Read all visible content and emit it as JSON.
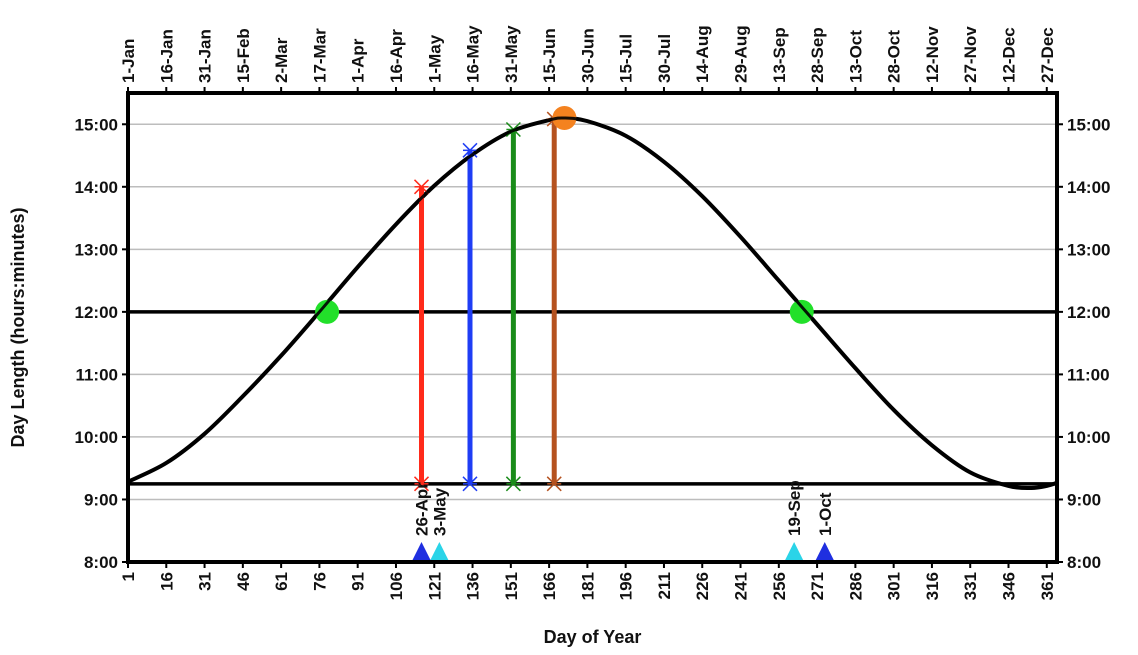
{
  "chart_data": {
    "type": "line",
    "title": "",
    "xlabel": "Day of Year",
    "ylabel": "Day Length (hours:minutes)",
    "xlim": [
      1,
      365
    ],
    "ylim": [
      "8:00",
      "15:30"
    ],
    "grid": true,
    "x_ticks_bottom": [
      "1",
      "16",
      "31",
      "46",
      "61",
      "76",
      "91",
      "106",
      "121",
      "136",
      "151",
      "166",
      "181",
      "196",
      "211",
      "226",
      "241",
      "256",
      "271",
      "286",
      "301",
      "316",
      "331",
      "346",
      "361"
    ],
    "x_ticks_top": [
      "1-Jan",
      "16-Jan",
      "31-Jan",
      "15-Feb",
      "2-Mar",
      "17-Mar",
      "1-Apr",
      "16-Apr",
      "1-May",
      "16-May",
      "31-May",
      "15-Jun",
      "30-Jun",
      "15-Jul",
      "30-Jul",
      "14-Aug",
      "29-Aug",
      "13-Sep",
      "28-Sep",
      "13-Oct",
      "28-Oct",
      "12-Nov",
      "27-Nov",
      "12-Dec",
      "27-Dec"
    ],
    "y_ticks": [
      "8:00",
      "9:00",
      "10:00",
      "11:00",
      "12:00",
      "13:00",
      "14:00",
      "15:00"
    ],
    "y_ticks_right": [
      "8:00",
      "9:00",
      "10:00",
      "11:00",
      "12:00",
      "13:00",
      "14:00",
      "15:00"
    ],
    "day_length_curve": {
      "x": [
        1,
        16,
        31,
        46,
        61,
        76,
        91,
        106,
        121,
        136,
        151,
        166,
        172,
        181,
        196,
        211,
        226,
        241,
        256,
        271,
        286,
        301,
        316,
        331,
        346,
        355,
        361,
        365
      ],
      "y": [
        "9:17",
        "9:35",
        "10:03",
        "10:39",
        "11:18",
        "12:00",
        "12:43",
        "13:24",
        "14:01",
        "14:31",
        "14:53",
        "15:04",
        "15:06",
        "15:03",
        "14:49",
        "14:24",
        "13:51",
        "13:12",
        "12:30",
        "11:48",
        "11:06",
        "10:26",
        "9:52",
        "9:26",
        "9:13",
        "9:11",
        "9:13",
        "9:16"
      ]
    },
    "horizontal_lines": [
      "12:00",
      "9:15"
    ],
    "equinox_markers": [
      {
        "x": 79,
        "y": "12:00"
      },
      {
        "x": 265,
        "y": "12:00"
      }
    ],
    "solstice_marker": {
      "x": 172,
      "y": "15:06"
    },
    "vertical_bars": [
      {
        "x": 116,
        "y0": "9:15",
        "y1": "14:00",
        "color": "#ff2a1a"
      },
      {
        "x": 135,
        "y0": "9:15",
        "y1": "14:35",
        "color": "#1f3df5"
      },
      {
        "x": 152,
        "y0": "9:15",
        "y1": "14:55",
        "color": "#1a8c1a"
      },
      {
        "x": 168,
        "y0": "9:15",
        "y1": "15:05",
        "color": "#b5521f"
      }
    ],
    "date_markers": [
      {
        "x": 116,
        "label": "26-Apr",
        "color": "#1f2fe0"
      },
      {
        "x": 123,
        "label": "3-May",
        "color": "#2ad4e8"
      },
      {
        "x": 262,
        "label": "19-Sep",
        "color": "#2ad4e8"
      },
      {
        "x": 274,
        "label": "1-Oct",
        "color": "#1f2fe0"
      }
    ],
    "colors": {
      "curve": "#000000",
      "equinox": "#22e02a",
      "solstice": "#f4821f",
      "grid": "#bdbdbd"
    }
  }
}
